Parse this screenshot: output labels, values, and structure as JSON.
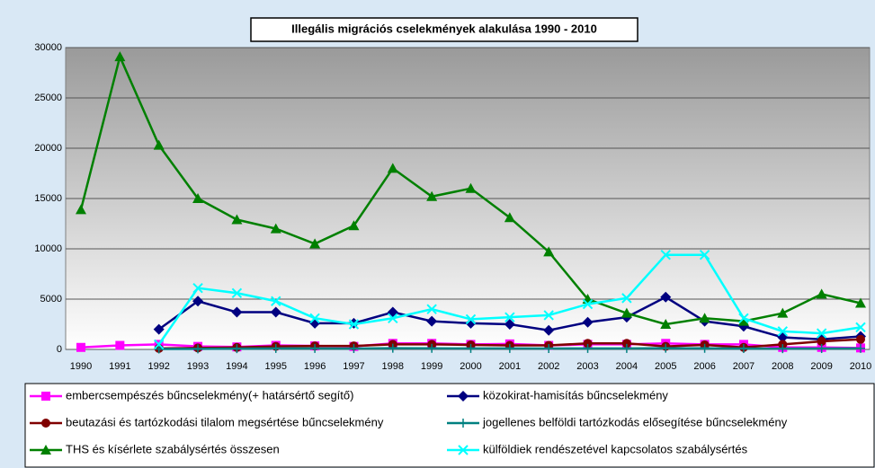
{
  "chart_data": {
    "type": "line",
    "title": "Illegális migrációs cselekmények alakulása 1990 - 2010",
    "categories": [
      "1990",
      "1991",
      "1992",
      "1993",
      "1994",
      "1995",
      "1996",
      "1997",
      "1998",
      "1999",
      "2000",
      "2001",
      "2002",
      "2003",
      "2004",
      "2005",
      "2006",
      "2007",
      "2008",
      "2009",
      "2010"
    ],
    "ylim": [
      0,
      30000
    ],
    "yticks": [
      0,
      5000,
      10000,
      15000,
      20000,
      25000,
      30000
    ],
    "grid": true,
    "series": [
      {
        "name": "embercsempészés bűncselekmény(+ határsértő segítő)",
        "color": "#ff00ff",
        "marker": "square",
        "values": [
          200,
          400,
          500,
          300,
          250,
          400,
          350,
          300,
          600,
          600,
          500,
          550,
          400,
          500,
          500,
          600,
          500,
          500,
          200,
          200,
          150
        ]
      },
      {
        "name": "közokirat-hamisítás bűncselekmény",
        "color": "#000080",
        "marker": "diamond",
        "values": [
          null,
          null,
          2000,
          4800,
          3700,
          3700,
          2600,
          2600,
          3700,
          2800,
          2600,
          2500,
          1900,
          2700,
          3200,
          5200,
          2800,
          2300,
          1200,
          1000,
          1300
        ]
      },
      {
        "name": "beutazási és tartózkodási tilalom megsértése bűncselekmény",
        "color": "#800000",
        "marker": "circle",
        "values": [
          null,
          null,
          100,
          150,
          200,
          300,
          350,
          350,
          500,
          500,
          450,
          400,
          400,
          600,
          600,
          300,
          450,
          200,
          500,
          800,
          1000
        ]
      },
      {
        "name": "jogellenes belföldi tartózkodás elősegítése bűncselekmény",
        "color": "#008080",
        "marker": "plus",
        "values": [
          null,
          null,
          50,
          60,
          80,
          100,
          100,
          90,
          120,
          110,
          100,
          100,
          90,
          100,
          100,
          120,
          110,
          90,
          80,
          90,
          100
        ]
      },
      {
        "name": "THS és kísérlete szabálysértés összesen",
        "color": "#008000",
        "marker": "triangle",
        "values": [
          13900,
          29100,
          20300,
          15000,
          12900,
          12000,
          10500,
          12300,
          18000,
          15200,
          16000,
          13100,
          9700,
          5000,
          3600,
          2500,
          3100,
          2800,
          3600,
          5500,
          4600
        ]
      },
      {
        "name": "külföldiek rendészetével kapcsolatos szabálysértés",
        "color": "#00ffff",
        "marker": "x",
        "values": [
          null,
          null,
          500,
          6100,
          5600,
          4800,
          3100,
          2500,
          3100,
          4000,
          3000,
          3200,
          3400,
          4500,
          5100,
          9400,
          9400,
          3100,
          1800,
          1600,
          2200
        ]
      }
    ]
  }
}
